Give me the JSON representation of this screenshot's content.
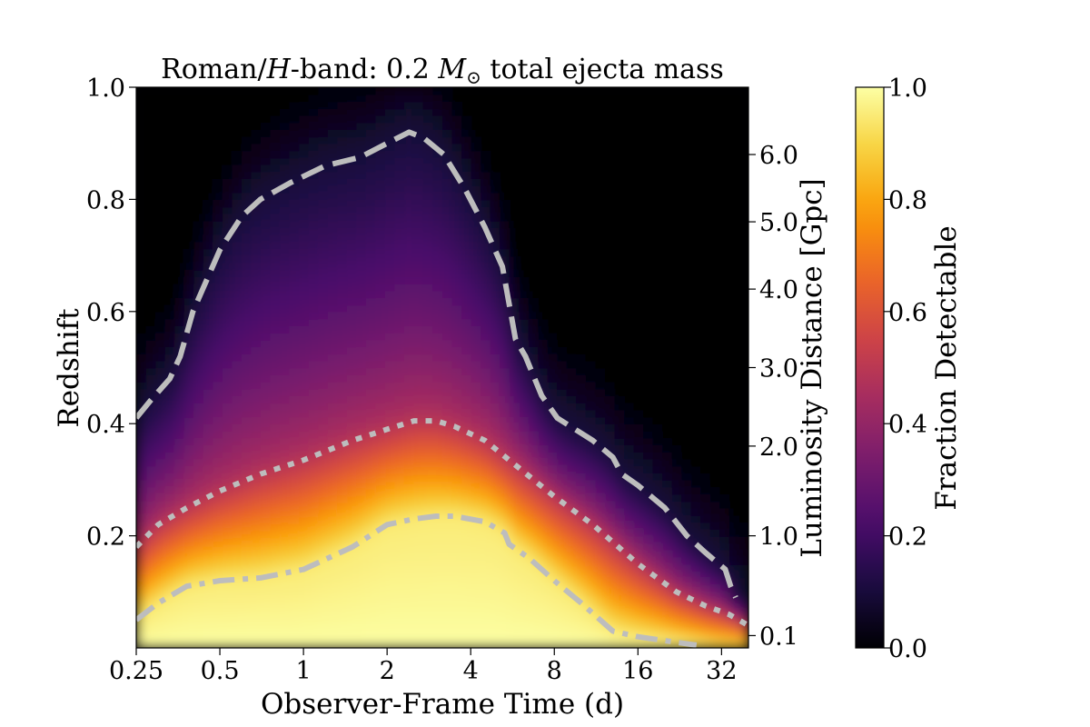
{
  "chart_data": {
    "type": "heatmap",
    "title": "Roman/H-band: 0.2 M⊙ total ejecta mass",
    "title_parts": {
      "prefix": "Roman/",
      "band": "H",
      "band_suffix": "-band: 0.2 ",
      "mass_symbol": "M",
      "mass_subscript": "⊙",
      "suffix": " total ejecta mass"
    },
    "xlabel": "Observer-Frame Time (d)",
    "ylabel": "Redshift",
    "y2label": "Luminosity Distance [Gpc]",
    "colorbar_label": "Fraction Detectable",
    "x_scale": "log2",
    "xlim": [
      0.25,
      40
    ],
    "ylim": [
      0.0,
      1.0
    ],
    "x_ticks": [
      0.25,
      0.5,
      1,
      2,
      4,
      8,
      16,
      32
    ],
    "x_tick_labels": [
      "0.25",
      "0.5",
      "1",
      "2",
      "4",
      "8",
      "16",
      "32"
    ],
    "y_ticks": [
      0.2,
      0.4,
      0.6,
      0.8,
      1.0
    ],
    "y_tick_labels": [
      "0.2",
      "0.4",
      "0.6",
      "0.8",
      "1.0"
    ],
    "y2_ticks_redshift": [
      0.022,
      0.2,
      0.36,
      0.5,
      0.64,
      0.76,
      0.88
    ],
    "y2_tick_labels": [
      "0.1",
      "1.0",
      "2.0",
      "3.0",
      "4.0",
      "5.0",
      "6.0"
    ],
    "colorbar_ticks": [
      0.0,
      0.2,
      0.4,
      0.6,
      0.8,
      1.0
    ],
    "colorbar_tick_labels": [
      "0.0",
      "0.2",
      "0.4",
      "0.6",
      "0.8",
      "1.0"
    ],
    "colormap": "inferno",
    "colormap_stops": [
      "#000004",
      "#1b0c41",
      "#4a0c6b",
      "#781c6d",
      "#a52c60",
      "#cf4446",
      "#ed6925",
      "#fb9b06",
      "#f7d13d",
      "#fcffa4"
    ],
    "contour_color": "#bdbdbd",
    "contours": [
      {
        "style": "dashed",
        "points": [
          [
            0.25,
            0.41
          ],
          [
            0.28,
            0.44
          ],
          [
            0.33,
            0.48
          ],
          [
            0.36,
            0.52
          ],
          [
            0.4,
            0.6
          ],
          [
            0.5,
            0.71
          ],
          [
            0.6,
            0.77
          ],
          [
            0.7,
            0.8
          ],
          [
            0.9,
            0.83
          ],
          [
            1.2,
            0.86
          ],
          [
            1.6,
            0.875
          ],
          [
            2.0,
            0.9
          ],
          [
            2.4,
            0.92
          ],
          [
            2.7,
            0.91
          ],
          [
            3.2,
            0.88
          ],
          [
            3.8,
            0.82
          ],
          [
            4.5,
            0.75
          ],
          [
            5.2,
            0.68
          ],
          [
            5.8,
            0.55
          ],
          [
            6.3,
            0.52
          ],
          [
            7.2,
            0.45
          ],
          [
            8.2,
            0.41
          ],
          [
            9.5,
            0.39
          ],
          [
            11,
            0.37
          ],
          [
            13,
            0.34
          ],
          [
            14,
            0.31
          ],
          [
            16,
            0.29
          ],
          [
            20,
            0.25
          ],
          [
            24,
            0.2
          ],
          [
            28,
            0.17
          ],
          [
            33,
            0.14
          ],
          [
            34.5,
            0.11
          ],
          [
            36,
            0.09
          ]
        ]
      },
      {
        "style": "dotted",
        "points": [
          [
            0.25,
            0.18
          ],
          [
            0.3,
            0.22
          ],
          [
            0.38,
            0.25
          ],
          [
            0.5,
            0.28
          ],
          [
            0.7,
            0.31
          ],
          [
            1.0,
            0.335
          ],
          [
            1.5,
            0.37
          ],
          [
            2.0,
            0.39
          ],
          [
            2.5,
            0.405
          ],
          [
            3.0,
            0.405
          ],
          [
            3.5,
            0.395
          ],
          [
            4.5,
            0.37
          ],
          [
            6.0,
            0.32
          ],
          [
            8.0,
            0.27
          ],
          [
            11,
            0.22
          ],
          [
            16,
            0.15
          ],
          [
            22,
            0.1
          ],
          [
            28,
            0.075
          ],
          [
            34,
            0.06
          ],
          [
            40,
            0.04
          ]
        ]
      },
      {
        "style": "dashdot",
        "points": [
          [
            0.25,
            0.05
          ],
          [
            0.3,
            0.08
          ],
          [
            0.38,
            0.11
          ],
          [
            0.5,
            0.12
          ],
          [
            0.7,
            0.125
          ],
          [
            1.0,
            0.14
          ],
          [
            1.5,
            0.18
          ],
          [
            2.0,
            0.22
          ],
          [
            2.5,
            0.23
          ],
          [
            3.0,
            0.235
          ],
          [
            3.5,
            0.235
          ],
          [
            4.5,
            0.225
          ],
          [
            5.3,
            0.205
          ],
          [
            5.5,
            0.185
          ],
          [
            6.5,
            0.16
          ],
          [
            8.0,
            0.12
          ],
          [
            10,
            0.08
          ],
          [
            13,
            0.03
          ],
          [
            16,
            0.02
          ],
          [
            22,
            0.01
          ],
          [
            26,
            0.005
          ]
        ]
      }
    ]
  }
}
